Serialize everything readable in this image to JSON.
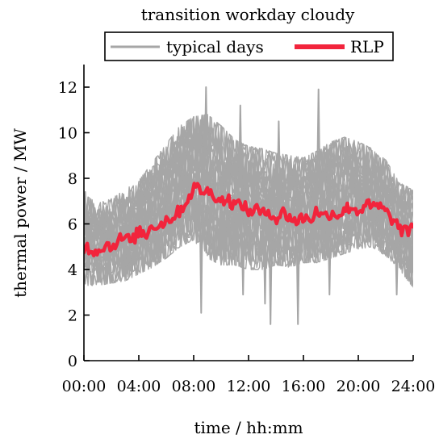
{
  "chart_data": {
    "type": "line",
    "title": "transition workday cloudy",
    "xlabel": "time / hh:mm",
    "ylabel": "thermal power / MW",
    "xlim": [
      0,
      24
    ],
    "ylim": [
      0,
      13
    ],
    "x_ticks": [
      {
        "value": 0,
        "label": "00:00"
      },
      {
        "value": 4,
        "label": "04:00"
      },
      {
        "value": 8,
        "label": "08:00"
      },
      {
        "value": 12,
        "label": "12:00"
      },
      {
        "value": 16,
        "label": "16:00"
      },
      {
        "value": 20,
        "label": "20:00"
      },
      {
        "value": 24,
        "label": "24:00"
      }
    ],
    "y_ticks": [
      {
        "value": 0,
        "label": "0"
      },
      {
        "value": 2,
        "label": "2"
      },
      {
        "value": 4,
        "label": "4"
      },
      {
        "value": 6,
        "label": "6"
      },
      {
        "value": 8,
        "label": "8"
      },
      {
        "value": 10,
        "label": "10"
      },
      {
        "value": 12,
        "label": "12"
      }
    ],
    "grid": false,
    "legend": {
      "placement": "top",
      "entries": [
        "typical days",
        "RLP"
      ]
    },
    "colors": {
      "typical_days": "#a6a6a6",
      "rlp": "#f2243c"
    },
    "series": [
      {
        "name": "typical days",
        "style": "band",
        "x": [
          0,
          1,
          2,
          3,
          4,
          5,
          6,
          7,
          8,
          9,
          10,
          11,
          12,
          13,
          14,
          15,
          16,
          17,
          18,
          19,
          20,
          21,
          22,
          23,
          24
        ],
        "lower": [
          3.6,
          3.6,
          3.7,
          3.8,
          4.1,
          4.4,
          4.8,
          5.3,
          5.6,
          4.8,
          4.5,
          4.5,
          4.3,
          4.3,
          4.5,
          4.4,
          4.6,
          4.6,
          4.8,
          5.0,
          5.2,
          5.3,
          4.9,
          4.3,
          3.5
        ],
        "upper": [
          7.0,
          6.6,
          6.8,
          7.2,
          7.6,
          8.4,
          9.2,
          10.0,
          10.4,
          10.5,
          10.0,
          9.4,
          9.1,
          9.0,
          8.8,
          8.7,
          8.6,
          8.9,
          9.3,
          9.5,
          9.3,
          9.0,
          8.5,
          7.5,
          7.2
        ],
        "spikes": [
          {
            "x": 0.1,
            "y": 7.4
          },
          {
            "x": 8.55,
            "y": 2.1
          },
          {
            "x": 8.9,
            "y": 12.0
          },
          {
            "x": 11.4,
            "y": 11.2
          },
          {
            "x": 11.6,
            "y": 2.9
          },
          {
            "x": 13.2,
            "y": 2.5
          },
          {
            "x": 13.6,
            "y": 1.6
          },
          {
            "x": 14.2,
            "y": 10.5
          },
          {
            "x": 15.6,
            "y": 1.6
          },
          {
            "x": 17.1,
            "y": 11.9
          },
          {
            "x": 17.9,
            "y": 2.9
          },
          {
            "x": 22.8,
            "y": 2.9
          },
          {
            "x": 23.9,
            "y": 3.3
          }
        ]
      },
      {
        "name": "RLP",
        "style": "line",
        "x": [
          0,
          0.5,
          1,
          1.5,
          2,
          2.5,
          3,
          3.5,
          4,
          4.5,
          5,
          5.5,
          6,
          6.5,
          7,
          7.5,
          8,
          8.5,
          9,
          9.5,
          10,
          10.5,
          11,
          11.5,
          12,
          12.5,
          13,
          13.5,
          14,
          14.5,
          15,
          15.5,
          16,
          16.5,
          17,
          17.5,
          18,
          18.5,
          19,
          19.5,
          20,
          20.5,
          21,
          21.5,
          22,
          22.5,
          23,
          23.5,
          24
        ],
        "values": [
          5.0,
          4.9,
          4.8,
          5.1,
          5.0,
          5.3,
          5.4,
          5.2,
          5.7,
          5.5,
          6.0,
          5.9,
          6.2,
          6.3,
          6.6,
          7.0,
          7.6,
          7.5,
          7.4,
          7.3,
          7.0,
          7.1,
          6.8,
          6.9,
          6.5,
          6.7,
          6.4,
          6.6,
          6.2,
          6.5,
          6.3,
          6.1,
          6.3,
          6.2,
          6.6,
          6.3,
          6.5,
          6.4,
          6.6,
          6.8,
          6.5,
          6.9,
          6.7,
          6.8,
          6.5,
          6.2,
          5.8,
          5.6,
          5.9
        ]
      }
    ]
  }
}
